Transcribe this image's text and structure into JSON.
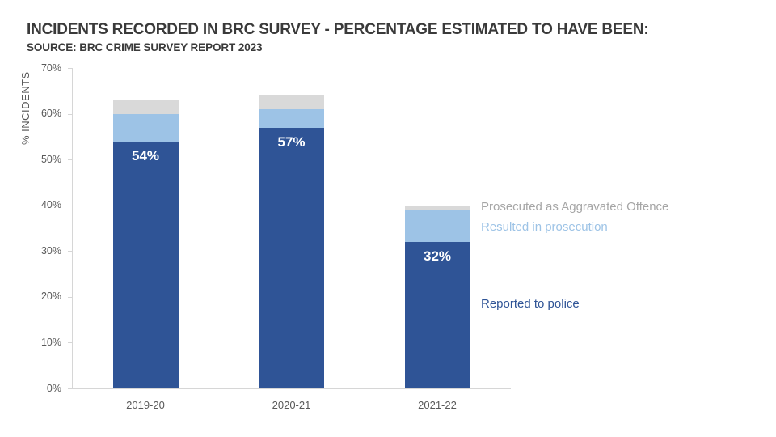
{
  "header": {
    "title": "INCIDENTS RECORDED IN BRC SURVEY - PERCENTAGE ESTIMATED TO HAVE BEEN:",
    "source": "SOURCE: BRC CRIME SURVEY REPORT 2023"
  },
  "colors": {
    "reported_to_police": "#2F5496",
    "resulted_in_prosecution": "#9DC3E6",
    "prosecuted_aggravated": "#D9D9D9",
    "axis_line": "#D6D6D6",
    "axis_text": "#595959",
    "title_text": "#3A3A3A",
    "bar_value_text": "#FFFFFF",
    "legend_aggravated_text": "#A6A6A6"
  },
  "chart_data": {
    "type": "bar",
    "stacked": true,
    "title": "INCIDENTS RECORDED IN BRC SURVEY - PERCENTAGE ESTIMATED TO HAVE BEEN:",
    "subtitle": "SOURCE: BRC CRIME SURVEY REPORT 2023",
    "xlabel": "",
    "ylabel": "% INCIDENTS",
    "ylim": [
      0,
      70
    ],
    "yticks": [
      0,
      10,
      20,
      30,
      40,
      50,
      60,
      70
    ],
    "ytick_labels": [
      "0%",
      "10%",
      "20%",
      "30%",
      "40%",
      "50%",
      "60%",
      "70%"
    ],
    "grid": false,
    "categories": [
      "2019-20",
      "2020-21",
      "2021-22"
    ],
    "series": [
      {
        "name": "Reported to police",
        "color": "#2F5496",
        "values": [
          54,
          57,
          32
        ]
      },
      {
        "name": "Resulted in prosecution",
        "color": "#9DC3E6",
        "values": [
          6,
          4,
          7
        ]
      },
      {
        "name": "Prosecuted as Aggravated Offence",
        "color": "#D9D9D9",
        "values": [
          3,
          3,
          1
        ]
      }
    ],
    "stack_totals": [
      63,
      64,
      40
    ],
    "bar_value_labels": [
      "54%",
      "57%",
      "32%"
    ],
    "legend_position": "right-colored-text-labels"
  },
  "legend": {
    "items": [
      {
        "label": "Prosecuted as Aggravated Offence",
        "color": "#A6A6A6"
      },
      {
        "label": "Resulted in prosecution",
        "color": "#9DC3E6"
      },
      {
        "label": "Reported to police",
        "color": "#2F5496"
      }
    ]
  }
}
